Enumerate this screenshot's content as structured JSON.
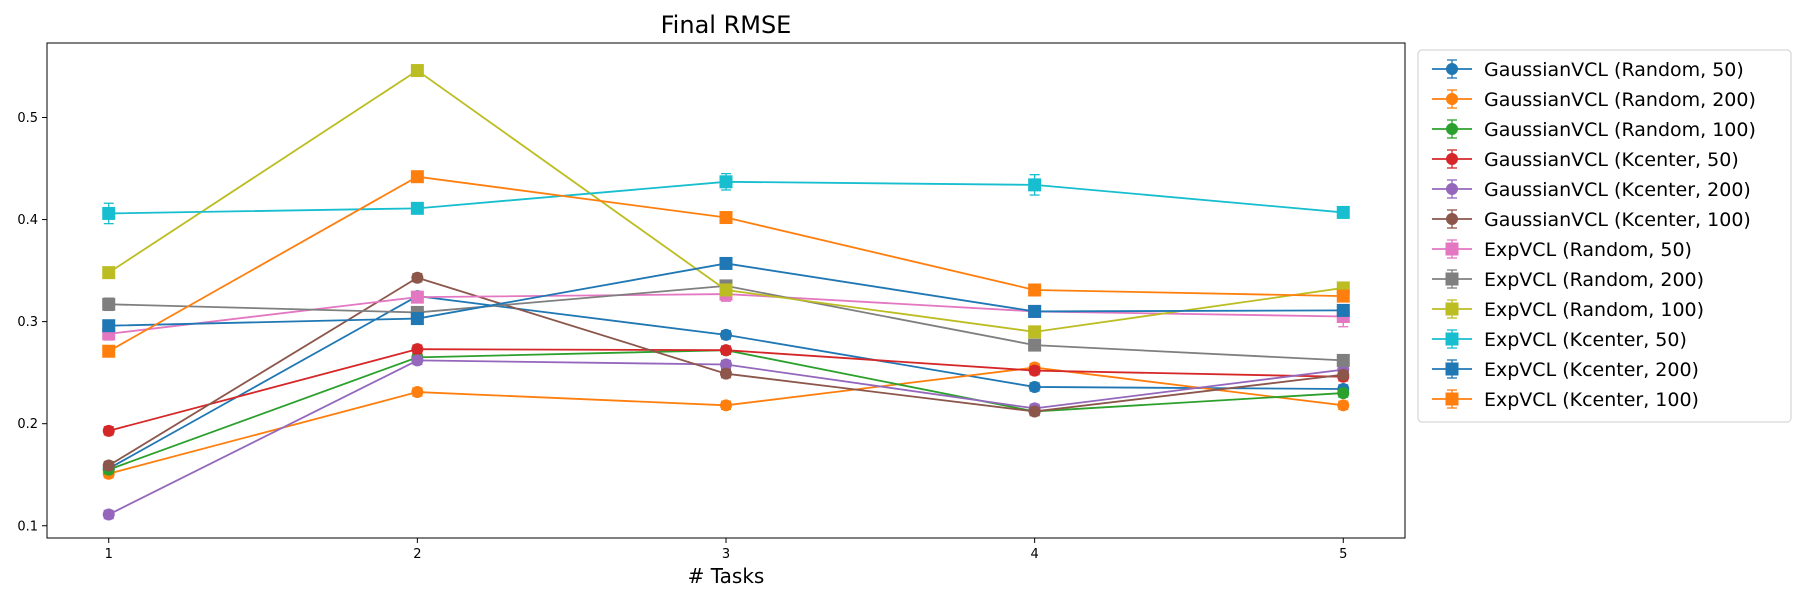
{
  "chart_data": {
    "type": "line",
    "title": "Final RMSE",
    "xlabel": "# Tasks",
    "ylabel": "",
    "x": [
      1,
      2,
      3,
      4,
      5
    ],
    "xlim": [
      0.8,
      5.2
    ],
    "ylim": [
      0.088,
      0.573
    ],
    "xticks": [
      "1",
      "2",
      "3",
      "4",
      "5"
    ],
    "yticks": [
      "0.1",
      "0.2",
      "0.3",
      "0.4",
      "0.5"
    ],
    "ytick_values": [
      0.1,
      0.2,
      0.3,
      0.4,
      0.5
    ],
    "grid": false,
    "legend_position": "outside-right",
    "series": [
      {
        "name": "GaussianVCL (Random, 50)",
        "color": "#1f77b4",
        "marker": "circle",
        "values": [
          0.156,
          0.325,
          0.287,
          0.236,
          0.234
        ],
        "err": [
          0.004,
          0.004,
          0.004,
          0.004,
          0.004
        ]
      },
      {
        "name": "GaussianVCL (Random, 200)",
        "color": "#ff7f0e",
        "marker": "circle",
        "values": [
          0.151,
          0.231,
          0.218,
          0.255,
          0.218
        ],
        "err": [
          0.004,
          0.004,
          0.004,
          0.004,
          0.004
        ]
      },
      {
        "name": "GaussianVCL (Random, 100)",
        "color": "#2ca02c",
        "marker": "circle",
        "values": [
          0.155,
          0.265,
          0.272,
          0.212,
          0.23
        ],
        "err": [
          0.004,
          0.004,
          0.004,
          0.004,
          0.004
        ]
      },
      {
        "name": "GaussianVCL (Kcenter, 50)",
        "color": "#d62728",
        "marker": "circle",
        "values": [
          0.193,
          0.273,
          0.272,
          0.252,
          0.246
        ],
        "err": [
          0.004,
          0.004,
          0.004,
          0.004,
          0.004
        ]
      },
      {
        "name": "GaussianVCL (Kcenter, 200)",
        "color": "#9467bd",
        "marker": "circle",
        "values": [
          0.111,
          0.262,
          0.258,
          0.215,
          0.253
        ],
        "err": [
          0.004,
          0.004,
          0.004,
          0.004,
          0.004
        ]
      },
      {
        "name": "GaussianVCL (Kcenter, 100)",
        "color": "#8c564b",
        "marker": "circle",
        "values": [
          0.159,
          0.343,
          0.249,
          0.212,
          0.248
        ],
        "err": [
          0.004,
          0.004,
          0.004,
          0.004,
          0.004
        ]
      },
      {
        "name": "ExpVCL (Random, 50)",
        "color": "#e377c2",
        "marker": "square",
        "values": [
          0.288,
          0.324,
          0.327,
          0.31,
          0.305
        ],
        "err": [
          0.006,
          0.005,
          0.007,
          0.005,
          0.01
        ]
      },
      {
        "name": "ExpVCL (Random, 200)",
        "color": "#7f7f7f",
        "marker": "square",
        "values": [
          0.317,
          0.309,
          0.335,
          0.277,
          0.262
        ],
        "err": [
          0.006,
          0.005,
          0.005,
          0.005,
          0.005
        ]
      },
      {
        "name": "ExpVCL (Random, 100)",
        "color": "#bcbd22",
        "marker": "square",
        "values": [
          0.348,
          0.546,
          0.331,
          0.29,
          0.333
        ],
        "err": [
          0.005,
          0.005,
          0.005,
          0.005,
          0.005
        ]
      },
      {
        "name": "ExpVCL (Kcenter, 50)",
        "color": "#17becf",
        "marker": "square",
        "values": [
          0.406,
          0.411,
          0.437,
          0.434,
          0.407
        ],
        "err": [
          0.01,
          0.005,
          0.008,
          0.01,
          0.005
        ]
      },
      {
        "name": "ExpVCL (Kcenter, 200)",
        "color": "#1f77b4",
        "marker": "square",
        "values": [
          0.296,
          0.303,
          0.357,
          0.31,
          0.311
        ],
        "err": [
          0.005,
          0.005,
          0.005,
          0.005,
          0.005
        ]
      },
      {
        "name": "ExpVCL (Kcenter, 100)",
        "color": "#ff7f0e",
        "marker": "square",
        "values": [
          0.271,
          0.442,
          0.402,
          0.331,
          0.325
        ],
        "err": [
          0.005,
          0.005,
          0.005,
          0.005,
          0.005
        ]
      }
    ]
  }
}
